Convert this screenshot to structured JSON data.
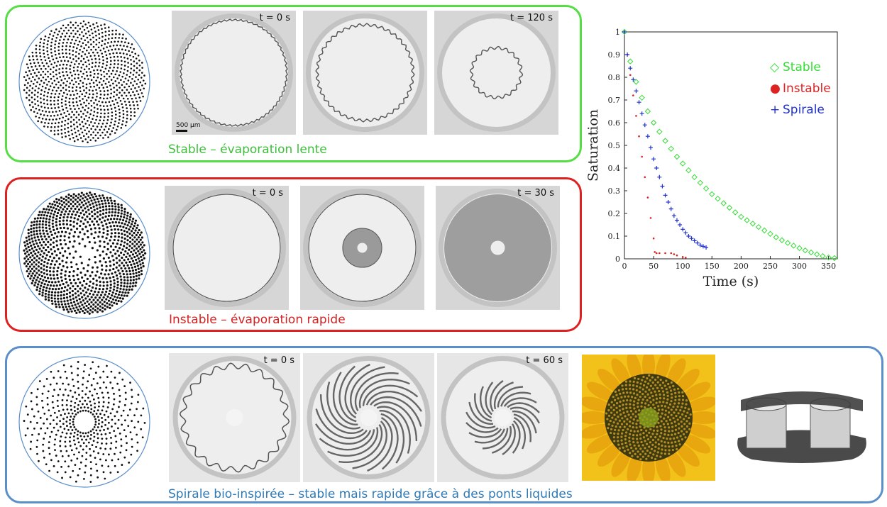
{
  "rows": [
    {
      "id": "stable",
      "caption": "Stable – évaporation lente",
      "border_color": "#55dd44",
      "caption_color": "#3dbe3a",
      "pattern_type": "uniform",
      "frames": [
        {
          "time_label": "t = 0 s",
          "scale_label": "500 µm",
          "stage": "s0"
        },
        {
          "time_label": "",
          "stage": "s1"
        },
        {
          "time_label": "t = 120 s",
          "stage": "s2"
        }
      ]
    },
    {
      "id": "instable",
      "caption": "Instable – évaporation rapide",
      "border_color": "#dd2020",
      "caption_color": "#d32222",
      "pattern_type": "graded",
      "frames": [
        {
          "time_label": "t = 0 s",
          "stage": "i0"
        },
        {
          "time_label": "",
          "stage": "i1"
        },
        {
          "time_label": "t = 30 s",
          "stage": "i2"
        }
      ]
    },
    {
      "id": "spirale",
      "caption": "Spirale bio-inspirée – stable mais rapide grâce à des ponts liquides",
      "border_color": "#5b8fc9",
      "caption_color": "#2f79b5",
      "pattern_type": "spiral",
      "frames": [
        {
          "time_label": "t = 0 s",
          "stage": "p0"
        },
        {
          "time_label": "",
          "stage": "p1"
        },
        {
          "time_label": "t = 60 s",
          "stage": "p2"
        }
      ]
    }
  ],
  "extras": {
    "sunflower_icon": "sunflower-photo",
    "bridge_icon": "liquid-bridge-3d-render"
  },
  "chart_data": {
    "type": "scatter",
    "xlabel": "Time (s)",
    "ylabel": "Saturation",
    "xlim": [
      0,
      365
    ],
    "ylim": [
      0,
      1
    ],
    "xticks": [
      0,
      50,
      100,
      150,
      200,
      250,
      300,
      350
    ],
    "yticks": [
      0,
      0.1,
      0.2,
      0.3,
      0.4,
      0.5,
      0.6,
      0.7,
      0.8,
      0.9,
      1
    ],
    "legend_position": "top-right",
    "series": [
      {
        "name": "Stable",
        "legend_symbol": "◇",
        "color": "#33dd33",
        "marker": "diamond",
        "x": [
          0,
          10,
          20,
          30,
          40,
          50,
          60,
          70,
          80,
          90,
          100,
          110,
          120,
          130,
          140,
          150,
          160,
          170,
          180,
          190,
          200,
          210,
          220,
          230,
          240,
          250,
          260,
          270,
          280,
          290,
          300,
          310,
          320,
          330,
          340,
          350,
          360
        ],
        "y": [
          1.0,
          0.87,
          0.78,
          0.71,
          0.65,
          0.6,
          0.56,
          0.52,
          0.485,
          0.45,
          0.42,
          0.39,
          0.36,
          0.335,
          0.31,
          0.285,
          0.265,
          0.245,
          0.225,
          0.205,
          0.185,
          0.17,
          0.155,
          0.14,
          0.125,
          0.11,
          0.095,
          0.082,
          0.07,
          0.058,
          0.047,
          0.037,
          0.028,
          0.02,
          0.012,
          0.006,
          0.003
        ]
      },
      {
        "name": "Instable",
        "legend_symbol": "●",
        "color": "#dd2222",
        "marker": "dot",
        "x": [
          0,
          5,
          10,
          15,
          20,
          25,
          30,
          35,
          40,
          45,
          50,
          52,
          55,
          60,
          70,
          80,
          85,
          90,
          100,
          105
        ],
        "y": [
          1.0,
          0.9,
          0.81,
          0.72,
          0.63,
          0.54,
          0.45,
          0.36,
          0.27,
          0.18,
          0.09,
          0.03,
          0.025,
          0.025,
          0.025,
          0.025,
          0.02,
          0.015,
          0.008,
          0.005
        ]
      },
      {
        "name": "Spirale",
        "legend_symbol": "+",
        "color": "#2233cc",
        "marker": "plus",
        "x": [
          0,
          5,
          10,
          15,
          20,
          25,
          30,
          35,
          40,
          45,
          50,
          55,
          60,
          65,
          70,
          75,
          80,
          85,
          90,
          95,
          100,
          105,
          110,
          115,
          120,
          125,
          130,
          135,
          140
        ],
        "y": [
          1.0,
          0.9,
          0.84,
          0.79,
          0.74,
          0.69,
          0.64,
          0.59,
          0.54,
          0.49,
          0.44,
          0.4,
          0.36,
          0.32,
          0.28,
          0.25,
          0.22,
          0.19,
          0.17,
          0.15,
          0.13,
          0.115,
          0.1,
          0.09,
          0.08,
          0.07,
          0.06,
          0.055,
          0.05
        ]
      }
    ]
  }
}
